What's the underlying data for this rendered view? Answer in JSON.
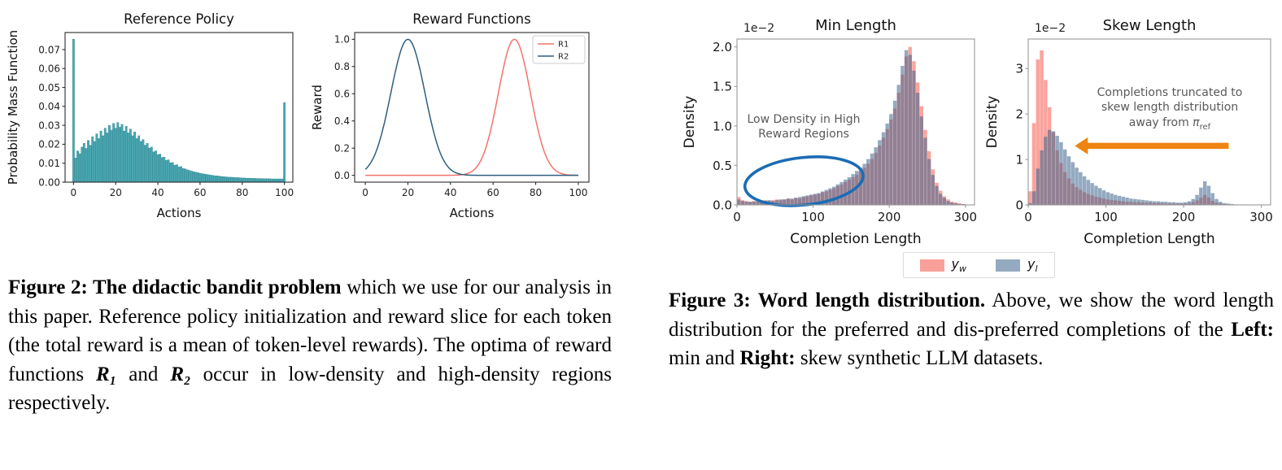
{
  "figure2": {
    "label": "Figure 2: ",
    "bold_title": " The didactic bandit problem",
    "text1": " which we use for our analysis in this paper. Reference policy initialization and reward slice for each token (the total reward is a mean of token-level rewards). The optima of reward functions ",
    "r1": "R₁",
    "text2": " and ",
    "r2": "R₂",
    "text3": " occur in low-density and high-density regions respectively."
  },
  "figure3": {
    "label": "Figure 3: ",
    "bold_title": "Word length distribution.",
    "text1": " Above, we show the word length distribution for the preferred and dis-preferred completions of the ",
    "left_bold": "Left:",
    "text2": " min and ",
    "right_bold": "Right:",
    "text3": " skew synthetic LLM datasets.",
    "legend": [
      {
        "base": "y",
        "sub": "w",
        "color": "#f9a09a"
      },
      {
        "base": "y",
        "sub": "l",
        "color": "#94aac0"
      }
    ]
  },
  "chart_data": [
    {
      "id": "ref-policy",
      "type": "bar",
      "title": "Reference Policy",
      "xlabel": "Actions",
      "ylabel": "Probability Mass Function",
      "xlim": [
        -4,
        104
      ],
      "ylim": [
        0,
        0.079
      ],
      "xticks": [
        0,
        20,
        40,
        60,
        80,
        100
      ],
      "yticks": [
        0,
        0.01,
        0.02,
        0.03,
        0.04,
        0.05,
        0.06,
        0.07
      ],
      "ytick_labels": [
        "0.00",
        "0.01",
        "0.02",
        "0.03",
        "0.04",
        "0.05",
        "0.06",
        "0.07"
      ],
      "grid": false,
      "bar_color": "#4aa8b2",
      "bar_edge": "#28818c",
      "x_start": 0,
      "bin_width": 1,
      "values": [
        0.0755,
        0.0128,
        0.0165,
        0.015,
        0.0185,
        0.0205,
        0.0178,
        0.022,
        0.0195,
        0.024,
        0.0215,
        0.0255,
        0.023,
        0.027,
        0.0245,
        0.0285,
        0.026,
        0.03,
        0.0275,
        0.031,
        0.0285,
        0.0315,
        0.029,
        0.0305,
        0.027,
        0.0295,
        0.026,
        0.028,
        0.0245,
        0.0265,
        0.023,
        0.0245,
        0.0215,
        0.0225,
        0.0195,
        0.0205,
        0.018,
        0.0185,
        0.016,
        0.0165,
        0.0145,
        0.0148,
        0.013,
        0.0132,
        0.0115,
        0.0118,
        0.0102,
        0.0104,
        0.009,
        0.0092,
        0.008,
        0.0082,
        0.0072,
        0.007,
        0.0065,
        0.0062,
        0.0058,
        0.0055,
        0.0052,
        0.005,
        0.0047,
        0.0045,
        0.0043,
        0.0041,
        0.0039,
        0.0037,
        0.0036,
        0.0034,
        0.0033,
        0.0032,
        0.003,
        0.0029,
        0.0028,
        0.0027,
        0.0026,
        0.0026,
        0.0025,
        0.0024,
        0.0024,
        0.0023,
        0.0022,
        0.0022,
        0.0021,
        0.0021,
        0.002,
        0.002,
        0.002,
        0.0019,
        0.0019,
        0.0019,
        0.0018,
        0.0018,
        0.0018,
        0.0018,
        0.0017,
        0.0017,
        0.0017,
        0.0017,
        0.0017,
        0.0017,
        0.042
      ]
    },
    {
      "id": "reward-functions",
      "type": "line",
      "title": "Reward Functions",
      "xlabel": "Actions",
      "ylabel": "Reward",
      "xlim": [
        -5,
        105
      ],
      "ylim": [
        -0.05,
        1.05
      ],
      "xticks": [
        0,
        20,
        40,
        60,
        80,
        100
      ],
      "yticks": [
        0,
        0.2,
        0.4,
        0.6,
        0.8,
        1
      ],
      "ytick_labels": [
        "0.0",
        "0.2",
        "0.4",
        "0.6",
        "0.8",
        "1.0"
      ],
      "grid": false,
      "legend_box": true,
      "legend_position": "upper right",
      "series": [
        {
          "name": "R1",
          "color": "#f4736b",
          "gaussian": {
            "mean": 70,
            "std": 7.5,
            "amplitude": 1
          }
        },
        {
          "name": "R2",
          "color": "#2e5f80",
          "gaussian": {
            "mean": 20,
            "std": 8,
            "amplitude": 1
          }
        }
      ]
    },
    {
      "id": "min-length",
      "type": "hist-overlay",
      "title": "Min Length",
      "xlabel": "Completion Length",
      "ylabel": "Density",
      "offset_label": "1e−2",
      "y_unit": "1e-2",
      "xlim": [
        0,
        312
      ],
      "ylim": [
        0,
        2.1
      ],
      "xticks": [
        0,
        100,
        200,
        300
      ],
      "yticks": [
        0,
        0.5,
        1,
        1.5,
        2
      ],
      "ytick_labels": [
        "0.0",
        "0.5",
        "1.0",
        "1.5",
        "2.0"
      ],
      "grid": false,
      "x_start": 0,
      "bin_width": 5,
      "series": [
        {
          "name": "y_w",
          "color": "rgba(246,97,86,0.58)",
          "values": [
            0.1,
            0.06,
            0.05,
            0.04,
            0.05,
            0.04,
            0.05,
            0.06,
            0.05,
            0.06,
            0.07,
            0.06,
            0.07,
            0.08,
            0.07,
            0.09,
            0.08,
            0.1,
            0.11,
            0.12,
            0.13,
            0.14,
            0.16,
            0.17,
            0.19,
            0.21,
            0.24,
            0.26,
            0.29,
            0.32,
            0.35,
            0.38,
            0.42,
            0.47,
            0.52,
            0.58,
            0.66,
            0.75,
            0.85,
            0.96,
            1.08,
            1.22,
            1.42,
            1.65,
            1.88,
            2.0,
            1.82,
            1.55,
            1.25,
            0.95,
            0.68,
            0.45,
            0.28,
            0.18,
            0.11,
            0.07,
            0.04,
            0.03,
            0.02,
            0.01
          ]
        },
        {
          "name": "y_l",
          "color": "rgba(60,100,140,0.55)",
          "values": [
            0.07,
            0.05,
            0.04,
            0.04,
            0.04,
            0.05,
            0.04,
            0.05,
            0.06,
            0.05,
            0.06,
            0.07,
            0.07,
            0.08,
            0.08,
            0.09,
            0.1,
            0.11,
            0.12,
            0.13,
            0.14,
            0.15,
            0.17,
            0.19,
            0.21,
            0.23,
            0.26,
            0.29,
            0.32,
            0.35,
            0.39,
            0.43,
            0.47,
            0.52,
            0.58,
            0.65,
            0.73,
            0.82,
            0.92,
            1.03,
            1.15,
            1.32,
            1.52,
            1.76,
            1.96,
            1.9,
            1.7,
            1.42,
            1.12,
            0.85,
            0.58,
            0.38,
            0.24,
            0.14,
            0.09,
            0.05,
            0.03,
            0.02,
            0.01,
            0.01
          ]
        }
      ],
      "annotation": {
        "line1": "Low Density in High",
        "line2": "Reward Regions"
      },
      "ellipse": {
        "cx": 88,
        "cy": 0.3,
        "rx": 78,
        "ry": 0.3,
        "rotation": -6,
        "color": "#1b6cb5"
      }
    },
    {
      "id": "skew-length",
      "type": "hist-overlay",
      "title": "Skew Length",
      "xlabel": "Completion Length",
      "ylabel": "Density",
      "offset_label": "1e−2",
      "y_unit": "1e-2",
      "xlim": [
        0,
        312
      ],
      "ylim": [
        0,
        3.65
      ],
      "xticks": [
        0,
        100,
        200,
        300
      ],
      "yticks": [
        0,
        1,
        2,
        3
      ],
      "ytick_labels": [
        "0",
        "1",
        "2",
        "3"
      ],
      "grid": false,
      "x_start": 0,
      "bin_width": 5,
      "series": [
        {
          "name": "y_w",
          "color": "rgba(246,97,86,0.58)",
          "values": [
            0.3,
            1.8,
            3.2,
            3.4,
            2.75,
            2.15,
            1.6,
            1.2,
            0.92,
            0.72,
            0.58,
            0.47,
            0.39,
            0.33,
            0.28,
            0.24,
            0.21,
            0.18,
            0.16,
            0.14,
            0.12,
            0.11,
            0.1,
            0.09,
            0.08,
            0.07,
            0.07,
            0.06,
            0.06,
            0.05,
            0.05,
            0.05,
            0.04,
            0.04,
            0.04,
            0.03,
            0.03,
            0.03,
            0.03,
            0.03,
            0.03,
            0.04,
            0.06,
            0.1,
            0.16,
            0.22,
            0.16,
            0.09,
            0.05,
            0.03,
            0.02,
            0.01,
            0.01,
            0,
            0,
            0,
            0,
            0,
            0,
            0
          ]
        },
        {
          "name": "y_l",
          "color": "rgba(60,100,140,0.55)",
          "values": [
            0.04,
            0.3,
            0.8,
            1.2,
            1.5,
            1.65,
            1.62,
            1.52,
            1.38,
            1.22,
            1.07,
            0.94,
            0.82,
            0.72,
            0.63,
            0.55,
            0.48,
            0.42,
            0.37,
            0.32,
            0.28,
            0.25,
            0.22,
            0.2,
            0.18,
            0.16,
            0.14,
            0.13,
            0.12,
            0.11,
            0.1,
            0.09,
            0.08,
            0.08,
            0.07,
            0.07,
            0.06,
            0.06,
            0.05,
            0.05,
            0.06,
            0.08,
            0.13,
            0.22,
            0.38,
            0.52,
            0.42,
            0.26,
            0.13,
            0.07,
            0.04,
            0.03,
            0.02,
            0.01,
            0.01,
            0,
            0,
            0,
            0,
            0
          ]
        }
      ],
      "annotation": {
        "line1": "Completions truncated to",
        "line2": "skew length distribution",
        "line3_prefix": "away from ",
        "pi": "π",
        "pi_sub": "ref"
      },
      "arrow": {
        "x_from": 258,
        "x_to": 60,
        "y": 1.3,
        "color": "#ee8411"
      }
    }
  ]
}
